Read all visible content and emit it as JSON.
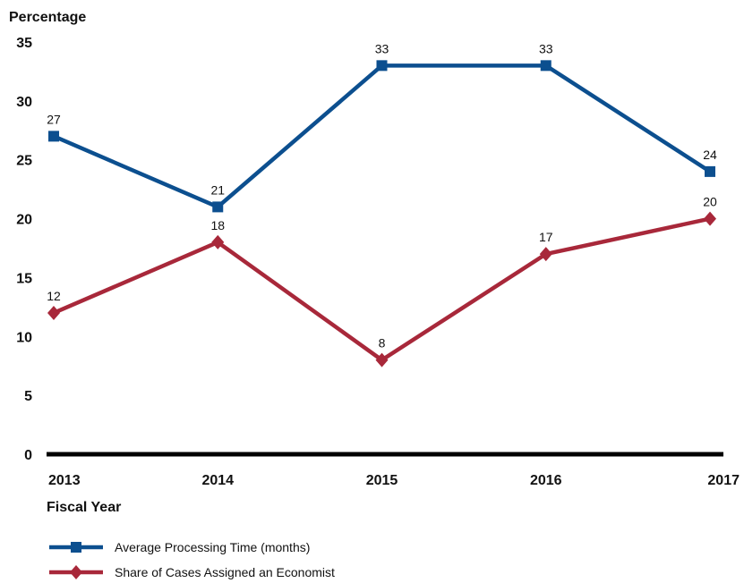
{
  "chart_data": {
    "type": "line",
    "ylabel": "Percentage",
    "xlabel": "Fiscal Year",
    "categories": [
      "2013",
      "2014",
      "2015",
      "2016",
      "2017"
    ],
    "ylim": [
      0,
      35
    ],
    "yticks": [
      0,
      5,
      10,
      15,
      20,
      25,
      30,
      35
    ],
    "grid": false,
    "legend_position": "bottom-left",
    "series": [
      {
        "name": "Average Processing Time (months)",
        "values": [
          27,
          21,
          33,
          33,
          24
        ],
        "color": "#0c4f8f",
        "marker": "square"
      },
      {
        "name": "Share of Cases Assigned an Economist",
        "values": [
          12,
          18,
          8,
          17,
          20
        ],
        "color": "#a8283a",
        "marker": "diamond"
      }
    ]
  }
}
